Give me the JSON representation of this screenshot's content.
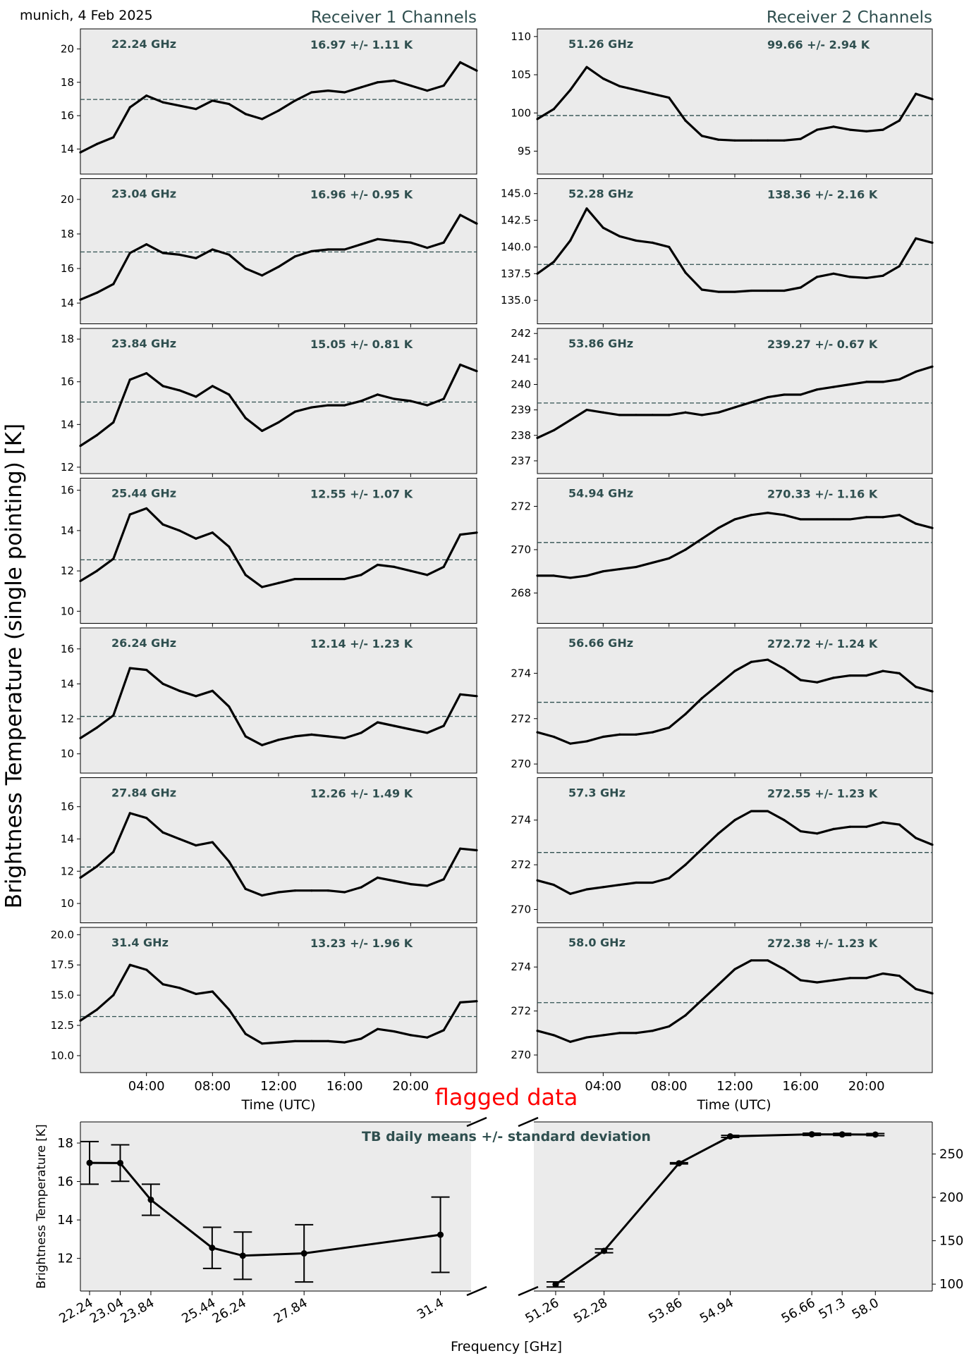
{
  "header": {
    "location_date": "munich, 4 Feb 2025",
    "receiver1_title": "Receiver 1 Channels",
    "receiver2_title": "Receiver 2 Channels",
    "ylabel": "Brightness Temperature (single pointing) [K]",
    "time_xlabel": "Time (UTC)",
    "time_ticks": [
      "04:00",
      "08:00",
      "12:00",
      "16:00",
      "20:00"
    ],
    "flagged_label": "flagged data"
  },
  "colors": {
    "panel_bg": "#ebebeb",
    "annotation": "#2f4f4f",
    "trace": "#000000",
    "flag": "#ff0000",
    "mean_line": "#2f4f4f"
  },
  "chart_data": [
    {
      "type": "line",
      "receiver": 1,
      "label": "22.24 GHz",
      "stat": "16.97 +/- 1.11 K",
      "mean": 16.97,
      "ylim": [
        12.5,
        21.2
      ],
      "yticks": [
        14,
        16,
        18,
        20
      ],
      "x": [
        0,
        1,
        2,
        3,
        4,
        5,
        6,
        7,
        8,
        9,
        10,
        11,
        12,
        13,
        14,
        15,
        16,
        17,
        18,
        19,
        20,
        21,
        22,
        23,
        24
      ],
      "values": [
        13.8,
        14.3,
        14.7,
        16.5,
        17.2,
        16.8,
        16.6,
        16.4,
        16.9,
        16.7,
        16.1,
        15.8,
        16.3,
        16.9,
        17.4,
        17.5,
        17.4,
        17.7,
        18.0,
        18.1,
        17.8,
        17.5,
        17.8,
        19.2,
        18.7
      ]
    },
    {
      "type": "line",
      "receiver": 1,
      "label": "23.04 GHz",
      "stat": "16.96 +/- 0.95 K",
      "mean": 16.96,
      "ylim": [
        12.8,
        21.2
      ],
      "yticks": [
        14,
        16,
        18,
        20
      ],
      "x": [
        0,
        1,
        2,
        3,
        4,
        5,
        6,
        7,
        8,
        9,
        10,
        11,
        12,
        13,
        14,
        15,
        16,
        17,
        18,
        19,
        20,
        21,
        22,
        23,
        24
      ],
      "values": [
        14.2,
        14.6,
        15.1,
        16.9,
        17.4,
        16.9,
        16.8,
        16.6,
        17.1,
        16.8,
        16.0,
        15.6,
        16.1,
        16.7,
        17.0,
        17.1,
        17.1,
        17.4,
        17.7,
        17.6,
        17.5,
        17.2,
        17.5,
        19.1,
        18.6
      ]
    },
    {
      "type": "line",
      "receiver": 1,
      "label": "23.84 GHz",
      "stat": "15.05 +/- 0.81 K",
      "mean": 15.05,
      "ylim": [
        11.7,
        18.5
      ],
      "yticks": [
        12,
        14,
        16,
        18
      ],
      "x": [
        0,
        1,
        2,
        3,
        4,
        5,
        6,
        7,
        8,
        9,
        10,
        11,
        12,
        13,
        14,
        15,
        16,
        17,
        18,
        19,
        20,
        21,
        22,
        23,
        24
      ],
      "values": [
        13.0,
        13.5,
        14.1,
        16.1,
        16.4,
        15.8,
        15.6,
        15.3,
        15.8,
        15.4,
        14.3,
        13.7,
        14.1,
        14.6,
        14.8,
        14.9,
        14.9,
        15.1,
        15.4,
        15.2,
        15.1,
        14.9,
        15.2,
        16.8,
        16.5
      ]
    },
    {
      "type": "line",
      "receiver": 1,
      "label": "25.44 GHz",
      "stat": "12.55 +/- 1.07 K",
      "mean": 12.55,
      "ylim": [
        9.4,
        16.6
      ],
      "yticks": [
        10,
        12,
        14,
        16
      ],
      "x": [
        0,
        1,
        2,
        3,
        4,
        5,
        6,
        7,
        8,
        9,
        10,
        11,
        12,
        13,
        14,
        15,
        16,
        17,
        18,
        19,
        20,
        21,
        22,
        23,
        24
      ],
      "values": [
        11.5,
        12.0,
        12.6,
        14.8,
        15.1,
        14.3,
        14.0,
        13.6,
        13.9,
        13.2,
        11.8,
        11.2,
        11.4,
        11.6,
        11.6,
        11.6,
        11.6,
        11.8,
        12.3,
        12.2,
        12.0,
        11.8,
        12.2,
        13.8,
        13.9
      ]
    },
    {
      "type": "line",
      "receiver": 1,
      "label": "26.24 GHz",
      "stat": "12.14 +/- 1.23 K",
      "mean": 12.14,
      "ylim": [
        8.9,
        17.2
      ],
      "yticks": [
        10,
        12,
        14,
        16
      ],
      "x": [
        0,
        1,
        2,
        3,
        4,
        5,
        6,
        7,
        8,
        9,
        10,
        11,
        12,
        13,
        14,
        15,
        16,
        17,
        18,
        19,
        20,
        21,
        22,
        23,
        24
      ],
      "values": [
        10.9,
        11.5,
        12.2,
        14.9,
        14.8,
        14.0,
        13.6,
        13.3,
        13.6,
        12.7,
        11.0,
        10.5,
        10.8,
        11.0,
        11.1,
        11.0,
        10.9,
        11.2,
        11.8,
        11.6,
        11.4,
        11.2,
        11.6,
        13.4,
        13.3
      ]
    },
    {
      "type": "line",
      "receiver": 1,
      "label": "27.84 GHz",
      "stat": "12.26 +/- 1.49 K",
      "mean": 12.26,
      "ylim": [
        8.8,
        17.8
      ],
      "yticks": [
        10,
        12,
        14,
        16
      ],
      "x": [
        0,
        1,
        2,
        3,
        4,
        5,
        6,
        7,
        8,
        9,
        10,
        11,
        12,
        13,
        14,
        15,
        16,
        17,
        18,
        19,
        20,
        21,
        22,
        23,
        24
      ],
      "values": [
        11.6,
        12.3,
        13.2,
        15.6,
        15.3,
        14.4,
        14.0,
        13.6,
        13.8,
        12.6,
        10.9,
        10.5,
        10.7,
        10.8,
        10.8,
        10.8,
        10.7,
        11.0,
        11.6,
        11.4,
        11.2,
        11.1,
        11.5,
        13.4,
        13.3
      ]
    },
    {
      "type": "line",
      "receiver": 1,
      "label": "31.4 GHz",
      "stat": "13.23 +/- 1.96 K",
      "mean": 13.23,
      "ylim": [
        8.6,
        20.6
      ],
      "yticks": [
        10.0,
        12.5,
        15.0,
        17.5,
        20.0
      ],
      "x": [
        0,
        1,
        2,
        3,
        4,
        5,
        6,
        7,
        8,
        9,
        10,
        11,
        12,
        13,
        14,
        15,
        16,
        17,
        18,
        19,
        20,
        21,
        22,
        23,
        24
      ],
      "values": [
        12.9,
        13.8,
        15.0,
        17.5,
        17.1,
        15.9,
        15.6,
        15.1,
        15.3,
        13.8,
        11.8,
        11.0,
        11.1,
        11.2,
        11.2,
        11.2,
        11.1,
        11.4,
        12.2,
        12.0,
        11.7,
        11.5,
        12.1,
        14.4,
        14.5
      ]
    },
    {
      "type": "line",
      "receiver": 2,
      "label": "51.26 GHz",
      "stat": "99.66 +/- 2.94 K",
      "mean": 99.66,
      "ylim": [
        92.0,
        111.0
      ],
      "yticks": [
        95,
        100,
        105,
        110
      ],
      "x": [
        0,
        1,
        2,
        3,
        4,
        5,
        6,
        7,
        8,
        9,
        10,
        11,
        12,
        13,
        14,
        15,
        16,
        17,
        18,
        19,
        20,
        21,
        22,
        23,
        24
      ],
      "values": [
        99.2,
        100.5,
        103.0,
        106.0,
        104.5,
        103.5,
        103.0,
        102.5,
        102.0,
        99.0,
        97.0,
        96.5,
        96.4,
        96.4,
        96.4,
        96.4,
        96.6,
        97.8,
        98.2,
        97.8,
        97.6,
        97.8,
        99.0,
        102.5,
        101.8
      ]
    },
    {
      "type": "line",
      "receiver": 2,
      "label": "52.28 GHz",
      "stat": "138.36 +/- 2.16 K",
      "mean": 138.36,
      "ylim": [
        132.8,
        146.4
      ],
      "yticks": [
        135.0,
        137.5,
        140.0,
        142.5,
        145.0
      ],
      "x": [
        0,
        1,
        2,
        3,
        4,
        5,
        6,
        7,
        8,
        9,
        10,
        11,
        12,
        13,
        14,
        15,
        16,
        17,
        18,
        19,
        20,
        21,
        22,
        23,
        24
      ],
      "values": [
        137.5,
        138.6,
        140.6,
        143.6,
        141.8,
        141.0,
        140.6,
        140.4,
        140.0,
        137.6,
        136.0,
        135.8,
        135.8,
        135.9,
        135.9,
        135.9,
        136.2,
        137.2,
        137.5,
        137.2,
        137.1,
        137.3,
        138.2,
        140.8,
        140.4
      ]
    },
    {
      "type": "line",
      "receiver": 2,
      "label": "53.86 GHz",
      "stat": "239.27 +/- 0.67 K",
      "mean": 239.27,
      "ylim": [
        236.5,
        242.2
      ],
      "yticks": [
        237,
        238,
        239,
        240,
        241,
        242
      ],
      "x": [
        0,
        1,
        2,
        3,
        4,
        5,
        6,
        7,
        8,
        9,
        10,
        11,
        12,
        13,
        14,
        15,
        16,
        17,
        18,
        19,
        20,
        21,
        22,
        23,
        24
      ],
      "values": [
        237.9,
        238.2,
        238.6,
        239.0,
        238.9,
        238.8,
        238.8,
        238.8,
        238.8,
        238.9,
        238.8,
        238.9,
        239.1,
        239.3,
        239.5,
        239.6,
        239.6,
        239.8,
        239.9,
        240.0,
        240.1,
        240.1,
        240.2,
        240.5,
        240.7
      ]
    },
    {
      "type": "line",
      "receiver": 2,
      "label": "54.94 GHz",
      "stat": "270.33 +/- 1.16 K",
      "mean": 270.33,
      "ylim": [
        266.6,
        273.3
      ],
      "yticks": [
        268,
        270,
        272
      ],
      "x": [
        0,
        1,
        2,
        3,
        4,
        5,
        6,
        7,
        8,
        9,
        10,
        11,
        12,
        13,
        14,
        15,
        16,
        17,
        18,
        19,
        20,
        21,
        22,
        23,
        24
      ],
      "values": [
        268.8,
        268.8,
        268.7,
        268.8,
        269.0,
        269.1,
        269.2,
        269.4,
        269.6,
        270.0,
        270.5,
        271.0,
        271.4,
        271.6,
        271.7,
        271.6,
        271.4,
        271.4,
        271.4,
        271.4,
        271.5,
        271.5,
        271.6,
        271.2,
        271.0
      ]
    },
    {
      "type": "line",
      "receiver": 2,
      "label": "56.66 GHz",
      "stat": "272.72 +/- 1.24 K",
      "mean": 272.72,
      "ylim": [
        269.6,
        276.0
      ],
      "yticks": [
        270,
        272,
        274
      ],
      "x": [
        0,
        1,
        2,
        3,
        4,
        5,
        6,
        7,
        8,
        9,
        10,
        11,
        12,
        13,
        14,
        15,
        16,
        17,
        18,
        19,
        20,
        21,
        22,
        23,
        24
      ],
      "values": [
        271.4,
        271.2,
        270.9,
        271.0,
        271.2,
        271.3,
        271.3,
        271.4,
        271.6,
        272.2,
        272.9,
        273.5,
        274.1,
        274.5,
        274.6,
        274.2,
        273.7,
        273.6,
        273.8,
        273.9,
        273.9,
        274.1,
        274.0,
        273.4,
        273.2
      ]
    },
    {
      "type": "line",
      "receiver": 2,
      "label": "57.3 GHz",
      "stat": "272.55 +/- 1.23 K",
      "mean": 272.55,
      "ylim": [
        269.4,
        275.9
      ],
      "yticks": [
        270,
        272,
        274
      ],
      "x": [
        0,
        1,
        2,
        3,
        4,
        5,
        6,
        7,
        8,
        9,
        10,
        11,
        12,
        13,
        14,
        15,
        16,
        17,
        18,
        19,
        20,
        21,
        22,
        23,
        24
      ],
      "values": [
        271.3,
        271.1,
        270.7,
        270.9,
        271.0,
        271.1,
        271.2,
        271.2,
        271.4,
        272.0,
        272.7,
        273.4,
        274.0,
        274.4,
        274.4,
        274.0,
        273.5,
        273.4,
        273.6,
        273.7,
        273.7,
        273.9,
        273.8,
        273.2,
        272.9
      ]
    },
    {
      "type": "line",
      "receiver": 2,
      "label": "58.0 GHz",
      "stat": "272.38 +/- 1.23 K",
      "mean": 272.38,
      "ylim": [
        269.2,
        275.8
      ],
      "yticks": [
        270,
        272,
        274
      ],
      "x": [
        0,
        1,
        2,
        3,
        4,
        5,
        6,
        7,
        8,
        9,
        10,
        11,
        12,
        13,
        14,
        15,
        16,
        17,
        18,
        19,
        20,
        21,
        22,
        23,
        24
      ],
      "values": [
        271.1,
        270.9,
        270.6,
        270.8,
        270.9,
        271.0,
        271.0,
        271.1,
        271.3,
        271.8,
        272.5,
        273.2,
        273.9,
        274.3,
        274.3,
        273.9,
        273.4,
        273.3,
        273.4,
        273.5,
        273.5,
        273.7,
        273.6,
        273.0,
        272.8
      ]
    },
    {
      "type": "line",
      "subtitle": "TB daily means +/- standard deviation",
      "xlabel": "Frequency [GHz]",
      "ylabel": "Brightness Temperature [K]",
      "flag_label": "flagged data",
      "left": {
        "x": [
          22.24,
          23.04,
          23.84,
          25.44,
          26.24,
          27.84,
          31.4
        ],
        "values": [
          16.97,
          16.96,
          15.05,
          12.55,
          12.14,
          12.26,
          13.23
        ],
        "errors": [
          1.11,
          0.95,
          0.81,
          1.07,
          1.23,
          1.49,
          1.96
        ],
        "xlim": [
          22.0,
          32.2
        ],
        "ylim": [
          10.3,
          19.1
        ],
        "yticks": [
          12,
          14,
          16,
          18
        ],
        "tick_labels": [
          "22.24",
          "23.04",
          "23.84",
          "25.44",
          "26.24",
          "27.84",
          "31.4"
        ]
      },
      "right": {
        "x": [
          51.26,
          52.28,
          53.86,
          54.94,
          56.66,
          57.3,
          58.0
        ],
        "values": [
          99.66,
          138.36,
          239.27,
          270.33,
          272.72,
          272.55,
          272.38
        ],
        "errors": [
          2.94,
          2.16,
          0.67,
          1.16,
          1.24,
          1.23,
          1.23
        ],
        "xlim": [
          50.8,
          59.2
        ],
        "ylim": [
          92.0,
          287.0
        ],
        "yticks": [
          100,
          150,
          200,
          250
        ],
        "tick_labels": [
          "51.26",
          "52.28",
          "53.86",
          "54.94",
          "56.66",
          "57.3",
          "58.0"
        ]
      }
    }
  ]
}
